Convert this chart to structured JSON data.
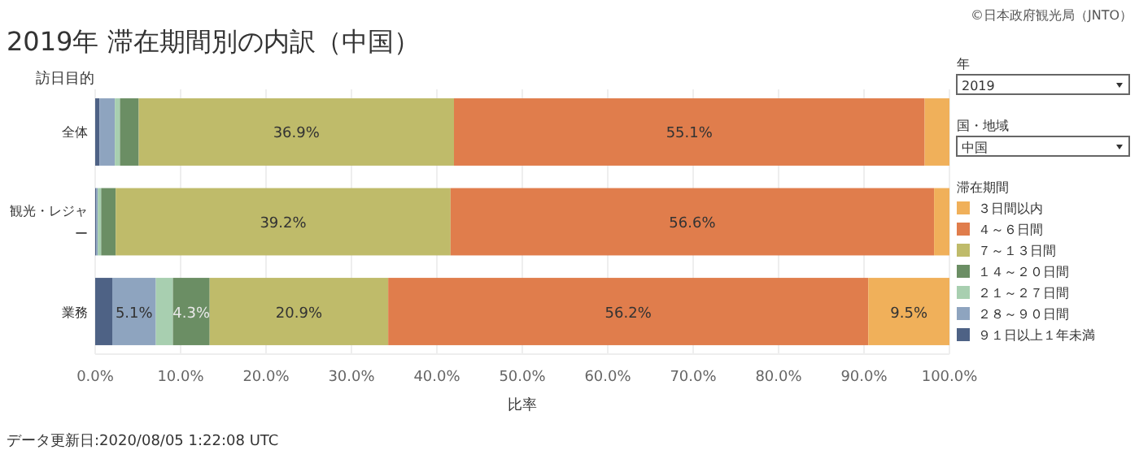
{
  "chart_data": {
    "type": "bar",
    "orientation": "horizontal",
    "stacked": true,
    "title": "2019年 滞在期間別の内訳（中国）",
    "ylabel": "訪日目的",
    "xlabel": "比率",
    "legend_title": "滞在期間",
    "categories": [
      "全体",
      "観光・レジャー",
      "業務"
    ],
    "series": [
      {
        "name": "９１日以上１年未満",
        "color": "#4e6285",
        "values": [
          0.5,
          0.1,
          2.0
        ],
        "value_labels": [
          null,
          null,
          null
        ]
      },
      {
        "name": "２８～９０日間",
        "color": "#8ea4bf",
        "values": [
          1.8,
          0.2,
          5.1
        ],
        "value_labels": [
          null,
          null,
          "5.1%"
        ]
      },
      {
        "name": "２１～２７日間",
        "color": "#a8cfb0",
        "values": [
          0.6,
          0.4,
          2.0
        ],
        "value_labels": [
          null,
          null,
          null
        ]
      },
      {
        "name": "１４～２０日間",
        "color": "#6b8e64",
        "values": [
          2.2,
          1.7,
          4.3
        ],
        "value_labels": [
          null,
          null,
          "4.3%"
        ]
      },
      {
        "name": "７～１３日間",
        "color": "#bfbb6a",
        "values": [
          36.9,
          39.2,
          20.9
        ],
        "value_labels": [
          "36.9%",
          "39.2%",
          "20.9%"
        ]
      },
      {
        "name": "４～６日間",
        "color": "#e07d4c",
        "values": [
          55.1,
          56.6,
          56.2
        ],
        "value_labels": [
          "55.1%",
          "56.6%",
          "56.2%"
        ]
      },
      {
        "name": "３日間以内",
        "color": "#f0b05a",
        "values": [
          2.9,
          1.8,
          9.5
        ],
        "value_labels": [
          null,
          null,
          "9.5%"
        ]
      }
    ],
    "xlim": [
      0,
      100
    ],
    "xticks": [
      {
        "value": 0,
        "label": "0.0%"
      },
      {
        "value": 10,
        "label": "10.0%"
      },
      {
        "value": 20,
        "label": "20.0%"
      },
      {
        "value": 30,
        "label": "30.0%"
      },
      {
        "value": 40,
        "label": "40.0%"
      },
      {
        "value": 50,
        "label": "50.0%"
      },
      {
        "value": 60,
        "label": "60.0%"
      },
      {
        "value": 70,
        "label": "70.0%"
      },
      {
        "value": 80,
        "label": "80.0%"
      },
      {
        "value": 90,
        "label": "90.0%"
      },
      {
        "value": 100,
        "label": "100.0%"
      }
    ],
    "grid": "x",
    "legend": "right",
    "annotations": [
      "©日本政府観光局（JNTO）",
      "年",
      "2019",
      "国・地域",
      "中国",
      "データ更新日:2020/08/05 1:22:08 UTC"
    ]
  }
}
